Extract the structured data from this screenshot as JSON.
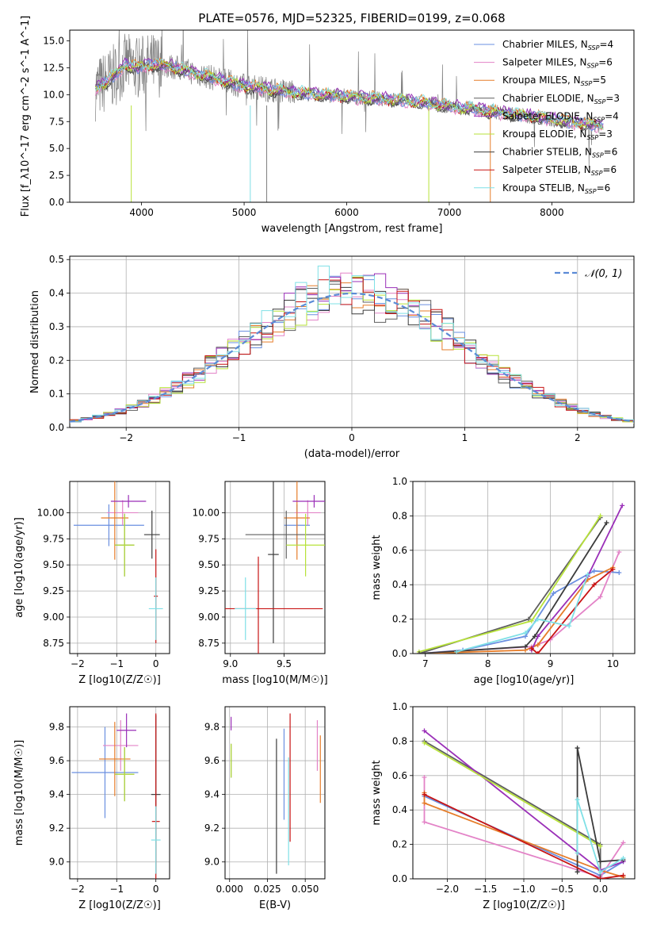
{
  "figure_title": "PLATE=0576, MJD=52325, FIBERID=0199, z=0.068",
  "colors": {
    "Chabrier MILES": "#6a8fe0",
    "Salpeter MILES": "#e383c7",
    "Kroupa MILES": "#e67d2a",
    "Chabrier ELODIE": "#5f5f5f",
    "Salpeter ELODIE": "#9a2fb8",
    "Kroupa ELODIE": "#b7e23a",
    "Chabrier STELIB": "#3b3b3b",
    "Salpeter STELIB": "#c81414",
    "Kroupa STELIB": "#7fe0e6",
    "data": "#808080"
  },
  "chart_data": [
    {
      "id": "spectrum",
      "type": "line",
      "title": "PLATE=0576, MJD=52325, FIBERID=0199, z=0.068",
      "xlabel": "wavelength [Angstrom, rest frame]",
      "ylabel": "Flux [f_λ10^-17 erg cm^-2 s^-1 A^-1]",
      "xlim": [
        3300,
        8800
      ],
      "ylim": [
        0,
        16
      ],
      "xticks": [
        "4000",
        "5000",
        "6000",
        "7000",
        "8000"
      ],
      "yticks": [
        "0.0",
        "2.5",
        "5.0",
        "7.5",
        "10.0",
        "12.5",
        "15.0"
      ],
      "legend_position": "top-right",
      "legend": [
        {
          "label": "Chabrier MILES, N",
          "sub": "SSP",
          "value": "=4"
        },
        {
          "label": "Salpeter MILES, N",
          "sub": "SSP",
          "value": "=6"
        },
        {
          "label": "Kroupa MILES, N",
          "sub": "SSP",
          "value": "=5"
        },
        {
          "label": "Chabrier ELODIE, N",
          "sub": "SSP",
          "value": "=3"
        },
        {
          "label": "Salpeter ELODIE, N",
          "sub": "SSP",
          "value": "=4"
        },
        {
          "label": "Kroupa ELODIE, N",
          "sub": "SSP",
          "value": "=3"
        },
        {
          "label": "Chabrier STELIB, N",
          "sub": "SSP",
          "value": "=6"
        },
        {
          "label": "Salpeter STELIB, N",
          "sub": "SSP",
          "value": "=6"
        },
        {
          "label": "Kroupa STELIB, N",
          "sub": "SSP",
          "value": "=6"
        }
      ],
      "model_continuum": {
        "x": [
          3550,
          3700,
          3850,
          3950,
          4100,
          4300,
          4600,
          5000,
          5500,
          6000,
          6500,
          6800,
          7000,
          7300,
          7600,
          8000,
          8300,
          8500
        ],
        "y": [
          10.5,
          11.5,
          12.8,
          12.5,
          12.8,
          12.6,
          11.8,
          10.8,
          10.2,
          9.8,
          9.5,
          9.2,
          8.9,
          8.6,
          8.2,
          7.7,
          7.3,
          7.1
        ]
      },
      "data_note": ""
    },
    {
      "id": "residuals",
      "type": "line",
      "xlabel": "(data-model)/error",
      "ylabel": "Normed distribution",
      "xlim": [
        -2.5,
        2.5
      ],
      "ylim": [
        0,
        0.51
      ],
      "xticks": [
        "−2",
        "−1",
        "0",
        "1",
        "2"
      ],
      "yticks": [
        "0.0",
        "0.1",
        "0.2",
        "0.3",
        "0.4",
        "0.5"
      ],
      "legend": "𝒩(0, 1)",
      "legend_position": "top-right",
      "normal": {
        "mean": 0,
        "sigma": 1
      }
    },
    {
      "id": "age_vs_Z",
      "type": "scatter",
      "xlabel": "Z [log10(Z/Z☉)]",
      "ylabel": "age  [log10(age/yr)]",
      "xlim": [
        -2.2,
        0.35
      ],
      "ylim": [
        8.65,
        10.3
      ],
      "xticks": [
        "−2",
        "−1",
        "0"
      ],
      "yticks": [
        "8.75",
        "9.00",
        "9.25",
        "9.50",
        "9.75",
        "10.00"
      ],
      "points": [
        {
          "model": "Chabrier MILES",
          "x": -1.2,
          "xerr": 0.9,
          "y": 9.88,
          "yerr": 0.2
        },
        {
          "model": "Salpeter MILES",
          "x": -0.85,
          "xerr": 0.4,
          "y": 10.0,
          "yerr": 0.12
        },
        {
          "model": "Kroupa MILES",
          "x": -1.05,
          "xerr": 0.35,
          "y": 9.95,
          "yerr": 0.4
        },
        {
          "model": "Chabrier ELODIE",
          "x": -0.8,
          "xerr": 0.25,
          "y": 9.69,
          "yerr": 0.3
        },
        {
          "model": "Salpeter ELODIE",
          "x": -0.7,
          "xerr": 0.45,
          "y": 10.11,
          "yerr": 0.06
        },
        {
          "model": "Kroupa ELODIE",
          "x": -0.8,
          "xerr": 0.25,
          "y": 9.69,
          "yerr": 0.3
        },
        {
          "model": "Chabrier STELIB",
          "x": -0.1,
          "xerr": 0.2,
          "y": 9.79,
          "yerr": 0.23
        },
        {
          "model": "Salpeter STELIB",
          "x": 0.0,
          "xerr": 0.05,
          "y": 9.2,
          "yerr": 0.45
        },
        {
          "model": "Kroupa STELIB",
          "x": 0.0,
          "xerr": 0.18,
          "y": 9.08,
          "yerr": 0.3
        }
      ]
    },
    {
      "id": "age_vs_mass",
      "type": "scatter",
      "xlabel": "mass [log10(M/M☉)]",
      "ylabel": "",
      "xlim": [
        8.95,
        9.88
      ],
      "ylim": [
        8.65,
        10.3
      ],
      "xticks": [
        "9.0",
        "9.5"
      ],
      "yticks": [
        "8.75",
        "9.00",
        "9.25",
        "9.50",
        "9.75",
        "10.00"
      ],
      "points": [
        {
          "model": "Chabrier MILES",
          "x": 9.62,
          "xerr": 0.12,
          "y": 9.88,
          "yerr": 0.2
        },
        {
          "model": "Salpeter MILES",
          "x": 9.72,
          "xerr": 0.12,
          "y": 10.0,
          "yerr": 0.12
        },
        {
          "model": "Kroupa MILES",
          "x": 9.62,
          "xerr": 0.12,
          "y": 9.95,
          "yerr": 0.4
        },
        {
          "model": "Chabrier ELODIE",
          "x": 9.52,
          "xerr": 0.38,
          "y": 9.79,
          "yerr": 0.23
        },
        {
          "model": "Salpeter ELODIE",
          "x": 9.78,
          "xerr": 0.2,
          "y": 10.11,
          "yerr": 0.06
        },
        {
          "model": "Kroupa ELODIE",
          "x": 9.7,
          "xerr": 0.18,
          "y": 9.69,
          "yerr": 0.3
        },
        {
          "model": "Chabrier STELIB",
          "x": 9.4,
          "xerr": 0.05,
          "y": 9.6,
          "yerr": 0.85
        },
        {
          "model": "Salpeter STELIB",
          "x": 9.26,
          "xerr": 0.6,
          "y": 9.08,
          "yerr": 0.5
        },
        {
          "model": "Kroupa STELIB",
          "x": 9.14,
          "xerr": 0.1,
          "y": 9.08,
          "yerr": 0.3
        }
      ]
    },
    {
      "id": "weight_vs_age",
      "type": "line",
      "xlabel": "age  [log10(age/yr)]",
      "ylabel": "mass weight",
      "xlim": [
        6.8,
        10.35
      ],
      "ylim": [
        0,
        1
      ],
      "xticks": [
        "7",
        "8",
        "9",
        "10"
      ],
      "yticks": [
        "0.0",
        "0.2",
        "0.4",
        "0.6",
        "0.8",
        "1.0"
      ],
      "series": [
        {
          "model": "Chabrier MILES",
          "x": [
            6.9,
            7.6,
            8.6,
            9.05,
            9.7,
            10.1
          ],
          "y": [
            0.0,
            0.02,
            0.1,
            0.35,
            0.48,
            0.47
          ]
        },
        {
          "model": "Salpeter MILES",
          "x": [
            6.9,
            7.7,
            8.7,
            9.0,
            9.8,
            10.1
          ],
          "y": [
            0.0,
            0.02,
            0.04,
            0.08,
            0.33,
            0.59
          ]
        },
        {
          "model": "Kroupa MILES",
          "x": [
            6.9,
            8.6,
            8.8,
            9.6,
            10.0
          ],
          "y": [
            0.0,
            0.02,
            0.05,
            0.43,
            0.5
          ]
        },
        {
          "model": "Chabrier ELODIE",
          "x": [
            6.9,
            8.65,
            9.8
          ],
          "y": [
            0.0,
            0.2,
            0.79
          ]
        },
        {
          "model": "Salpeter ELODIE",
          "x": [
            8.7,
            8.8,
            9.6,
            10.15
          ],
          "y": [
            0.02,
            0.1,
            0.45,
            0.86
          ]
        },
        {
          "model": "Kroupa ELODIE",
          "x": [
            6.9,
            8.7,
            9.8
          ],
          "y": [
            0.01,
            0.19,
            0.8
          ]
        },
        {
          "model": "Chabrier STELIB",
          "x": [
            6.9,
            8.6,
            8.75,
            9.9
          ],
          "y": [
            0.0,
            0.04,
            0.1,
            0.76
          ]
        },
        {
          "model": "Salpeter STELIB",
          "x": [
            8.7,
            8.8,
            9.7,
            10.0
          ],
          "y": [
            0.03,
            0.0,
            0.4,
            0.49
          ]
        },
        {
          "model": "Kroupa STELIB",
          "x": [
            7.5,
            8.6,
            8.8,
            9.3,
            9.6
          ],
          "y": [
            0.01,
            0.12,
            0.2,
            0.16,
            0.46
          ]
        }
      ]
    },
    {
      "id": "mass_vs_Z",
      "type": "scatter",
      "xlabel": "Z [log10(Z/Z☉)]",
      "ylabel": "mass [log10(M/M☉)]",
      "xlim": [
        -2.2,
        0.35
      ],
      "ylim": [
        8.9,
        9.92
      ],
      "xticks": [
        "−2",
        "−1",
        "0"
      ],
      "yticks": [
        "9.0",
        "9.2",
        "9.4",
        "9.6",
        "9.8"
      ],
      "points": [
        {
          "model": "Chabrier MILES",
          "x": -1.3,
          "xerr": 0.85,
          "y": 9.53,
          "yerr": 0.27
        },
        {
          "model": "Salpeter MILES",
          "x": -0.9,
          "xerr": 0.45,
          "y": 9.69,
          "yerr": 0.15
        },
        {
          "model": "Kroupa MILES",
          "x": -1.05,
          "xerr": 0.4,
          "y": 9.61,
          "yerr": 0.22
        },
        {
          "model": "Chabrier ELODIE",
          "x": -0.8,
          "xerr": 0.25,
          "y": 9.52,
          "yerr": 0.16
        },
        {
          "model": "Salpeter ELODIE",
          "x": -0.75,
          "xerr": 0.25,
          "y": 9.78,
          "yerr": 0.1
        },
        {
          "model": "Kroupa ELODIE",
          "x": -0.8,
          "xerr": 0.25,
          "y": 9.52,
          "yerr": 0.16
        },
        {
          "model": "Chabrier STELIB",
          "x": 0.0,
          "xerr": 0.12,
          "y": 9.4,
          "yerr": 0.47
        },
        {
          "model": "Salpeter STELIB",
          "x": 0.0,
          "xerr": 0.1,
          "y": 9.24,
          "yerr": 0.64
        },
        {
          "model": "Kroupa STELIB",
          "x": 0.0,
          "xerr": 0.12,
          "y": 9.13,
          "yerr": 0.2
        }
      ]
    },
    {
      "id": "mass_vs_ebv",
      "type": "scatter",
      "xlabel": "E(B-V)",
      "ylabel": "",
      "xlim": [
        -0.003,
        0.063
      ],
      "ylim": [
        8.9,
        9.92
      ],
      "xticks": [
        "0.000",
        "0.025",
        "0.050"
      ],
      "yticks": [
        "9.0",
        "9.2",
        "9.4",
        "9.6",
        "9.8"
      ],
      "points": [
        {
          "model": "Chabrier MILES",
          "x": 0.036,
          "y": 9.52,
          "yerr": 0.27
        },
        {
          "model": "Salpeter MILES",
          "x": 0.058,
          "y": 9.69,
          "yerr": 0.15
        },
        {
          "model": "Kroupa MILES",
          "x": 0.06,
          "y": 9.55,
          "yerr": 0.2
        },
        {
          "model": "Chabrier ELODIE",
          "x": 0.001,
          "y": 9.6,
          "yerr": 0.1
        },
        {
          "model": "Salpeter ELODIE",
          "x": 0.001,
          "y": 9.82,
          "yerr": 0.04
        },
        {
          "model": "Kroupa ELODIE",
          "x": 0.001,
          "y": 9.6,
          "yerr": 0.1
        },
        {
          "model": "Chabrier STELIB",
          "x": 0.031,
          "y": 9.33,
          "yerr": 0.4
        },
        {
          "model": "Salpeter STELIB",
          "x": 0.04,
          "y": 9.5,
          "yerr": 0.38
        },
        {
          "model": "Kroupa STELIB",
          "x": 0.039,
          "y": 9.3,
          "yerr": 0.32
        }
      ]
    },
    {
      "id": "weight_vs_Z",
      "type": "line",
      "xlabel": "Z [log10(Z/Z☉)]",
      "ylabel": "mass weight",
      "xlim": [
        -2.45,
        0.45
      ],
      "ylim": [
        0,
        1
      ],
      "xticks": [
        "−2.0",
        "−1.5",
        "−1.0",
        "−0.5",
        "0.0"
      ],
      "yticks": [
        "0.0",
        "0.2",
        "0.4",
        "0.6",
        "0.8",
        "1.0"
      ],
      "series": [
        {
          "model": "Chabrier MILES",
          "x": [
            -2.3,
            0.0,
            0.3
          ],
          "y": [
            0.48,
            0.02,
            0.1
          ]
        },
        {
          "model": "Salpeter MILES",
          "x": [
            -2.3,
            -2.3,
            0.0,
            0.3
          ],
          "y": [
            0.59,
            0.33,
            0.01,
            0.21
          ]
        },
        {
          "model": "Kroupa MILES",
          "x": [
            -2.3,
            -2.3,
            0.0,
            0.3
          ],
          "y": [
            0.5,
            0.44,
            0.05,
            0.01
          ]
        },
        {
          "model": "Chabrier ELODIE",
          "x": [
            -2.3,
            0.0,
            0.0
          ],
          "y": [
            0.8,
            0.2,
            0.0
          ]
        },
        {
          "model": "Salpeter ELODIE",
          "x": [
            -2.3,
            0.0,
            0.3
          ],
          "y": [
            0.86,
            0.05,
            0.1
          ]
        },
        {
          "model": "Kroupa ELODIE",
          "x": [
            -2.3,
            0.0
          ],
          "y": [
            0.79,
            0.19
          ]
        },
        {
          "model": "Chabrier STELIB",
          "x": [
            -0.3,
            -0.3,
            0.0,
            0.3
          ],
          "y": [
            0.04,
            0.76,
            0.1,
            0.11
          ]
        },
        {
          "model": "Salpeter STELIB",
          "x": [
            -2.3,
            0.0,
            0.3
          ],
          "y": [
            0.49,
            0.0,
            0.02
          ]
        },
        {
          "model": "Kroupa STELIB",
          "x": [
            -0.3,
            -0.3,
            0.0,
            0.3
          ],
          "y": [
            0.15,
            0.46,
            0.04,
            0.12
          ]
        }
      ]
    }
  ]
}
